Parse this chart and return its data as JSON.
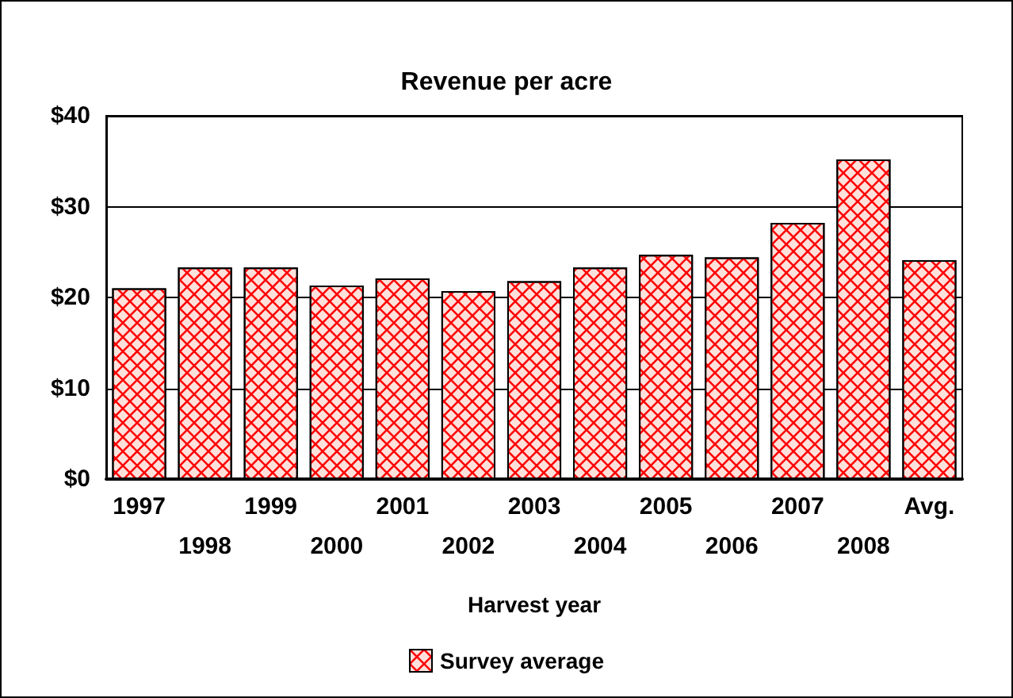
{
  "chart_data": {
    "type": "bar",
    "title": "Revenue per acre",
    "xlabel": "Harvest year",
    "categories": [
      "1997",
      "1998",
      "1999",
      "2000",
      "2001",
      "2002",
      "2003",
      "2004",
      "2005",
      "2006",
      "2007",
      "2008",
      "Avg."
    ],
    "series": [
      {
        "name": "Survey average",
        "color": "#ffe1dc",
        "values": [
          21.0,
          23.3,
          23.3,
          21.3,
          22.1,
          20.7,
          21.8,
          23.3,
          24.7,
          24.4,
          28.2,
          35.2,
          24.1
        ]
      }
    ],
    "ylim": [
      0,
      40
    ],
    "yticks": [
      {
        "value": 0,
        "label": "$0"
      },
      {
        "value": 10,
        "label": "$10"
      },
      {
        "value": 20,
        "label": "$20"
      },
      {
        "value": 30,
        "label": "$30"
      },
      {
        "value": 40,
        "label": "$40"
      }
    ],
    "grid": "y",
    "legend": "bottom"
  }
}
